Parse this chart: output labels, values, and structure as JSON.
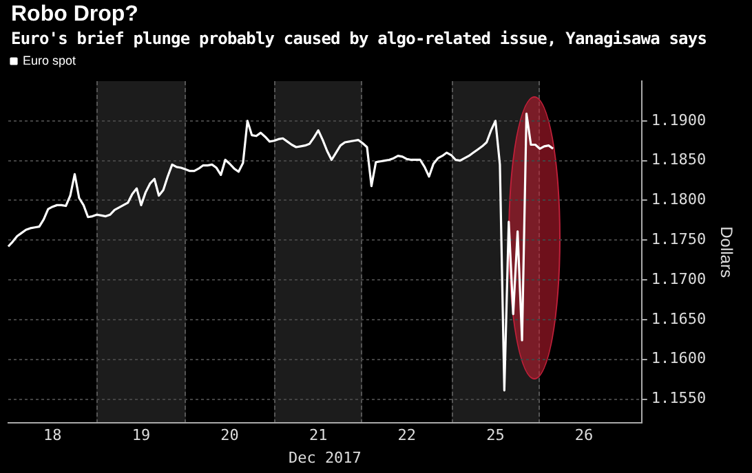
{
  "chart_data": {
    "type": "line",
    "title": "Robo Drop?",
    "subtitle": "Euro's brief plunge probably caused by algo-related issue, Yanagisawa says",
    "xlabel": "Dec 2017",
    "ylabel": "Dollars",
    "categories": [
      null,
      null,
      null,
      null,
      null,
      null,
      null,
      null,
      null,
      null,
      "18",
      null,
      null,
      null,
      null,
      null,
      null,
      null,
      null,
      null,
      null,
      null,
      null,
      null,
      null,
      null,
      null,
      null,
      null,
      null,
      "19",
      null,
      null,
      null,
      null,
      null,
      null,
      null,
      null,
      null,
      null,
      null,
      null,
      null,
      null,
      null,
      null,
      null,
      null,
      null,
      "20",
      null,
      null,
      null,
      null,
      null,
      null,
      null,
      null,
      null,
      null,
      null,
      null,
      null,
      null,
      null,
      null,
      null,
      null,
      null,
      "21",
      null,
      null,
      null,
      null,
      null,
      null,
      null,
      null,
      null,
      null,
      null,
      null,
      null,
      null,
      null,
      null,
      null,
      null,
      null,
      "22",
      null,
      null,
      null,
      null,
      null,
      null,
      null,
      null,
      null,
      null,
      null,
      null,
      null,
      null,
      null,
      null,
      null,
      null,
      null,
      "25",
      null,
      null,
      null,
      null,
      null,
      null,
      null,
      null,
      null,
      null,
      null,
      null,
      null,
      null,
      null,
      null,
      null,
      null,
      null,
      "26",
      null,
      null,
      null,
      null,
      null,
      null,
      null,
      null,
      null,
      null,
      null,
      null,
      null
    ],
    "ylim": [
      1.152,
      1.195
    ],
    "yticks": [
      {
        "value": 1.155,
        "label": "1.1550"
      },
      {
        "value": 1.16,
        "label": "1.1600"
      },
      {
        "value": 1.165,
        "label": "1.1650"
      },
      {
        "value": 1.17,
        "label": "1.1700"
      },
      {
        "value": 1.175,
        "label": "1.1750"
      },
      {
        "value": 1.18,
        "label": "1.1800"
      },
      {
        "value": 1.185,
        "label": "1.1850"
      },
      {
        "value": 1.19,
        "label": "1.1900"
      }
    ],
    "grid": "y",
    "legend": "top left",
    "marker": "none",
    "line_style": "solid",
    "series": [
      {
        "name": "Euro spot",
        "color": "#ffffff",
        "values": [
          1.1742,
          1.1748,
          1.1755,
          1.1759,
          1.1763,
          1.1765,
          1.1766,
          1.1767,
          1.1776,
          1.1789,
          1.1792,
          1.1794,
          1.1794,
          1.1793,
          1.1806,
          1.1833,
          1.1803,
          1.1794,
          1.1779,
          1.178,
          1.1782,
          1.1781,
          1.178,
          1.1782,
          1.1788,
          1.1791,
          1.1794,
          1.1797,
          1.1808,
          1.1815,
          1.1794,
          1.181,
          1.1821,
          1.1827,
          1.1806,
          1.1813,
          1.183,
          1.1845,
          1.1842,
          1.1841,
          1.1839,
          1.1837,
          1.1837,
          1.184,
          1.1844,
          1.1844,
          1.1845,
          1.1841,
          1.1832,
          1.1851,
          1.1846,
          1.184,
          1.1836,
          1.1847,
          1.19,
          1.1882,
          1.1881,
          1.1885,
          1.188,
          1.1874,
          1.1875,
          1.1877,
          1.1878,
          1.1874,
          1.187,
          1.1867,
          1.1868,
          1.1869,
          1.1871,
          1.1879,
          1.1888,
          1.1876,
          1.1862,
          1.1851,
          1.186,
          1.1869,
          1.1873,
          1.1874,
          1.1875,
          1.1876,
          1.1872,
          1.1867,
          1.1818,
          1.1848,
          1.1849,
          1.185,
          1.1851,
          1.1853,
          1.1856,
          1.1855,
          1.1852,
          1.1851,
          1.1851,
          1.1851,
          1.1842,
          1.183,
          1.1846,
          1.1853,
          1.1856,
          1.186,
          1.1857,
          1.1851,
          1.185,
          1.1853,
          1.1856,
          1.186,
          1.1864,
          1.1868,
          1.1873,
          1.1888,
          1.19,
          1.1845,
          1.1561,
          1.1773,
          1.1657,
          1.1761,
          1.1624,
          1.1909,
          1.187,
          1.187,
          1.1865,
          1.1868,
          1.1869,
          1.1865,
          null,
          null,
          null,
          null,
          null,
          null,
          null,
          null,
          null,
          null,
          null,
          null,
          null,
          null,
          null,
          null,
          null,
          null,
          null,
          null
        ]
      }
    ]
  }
}
